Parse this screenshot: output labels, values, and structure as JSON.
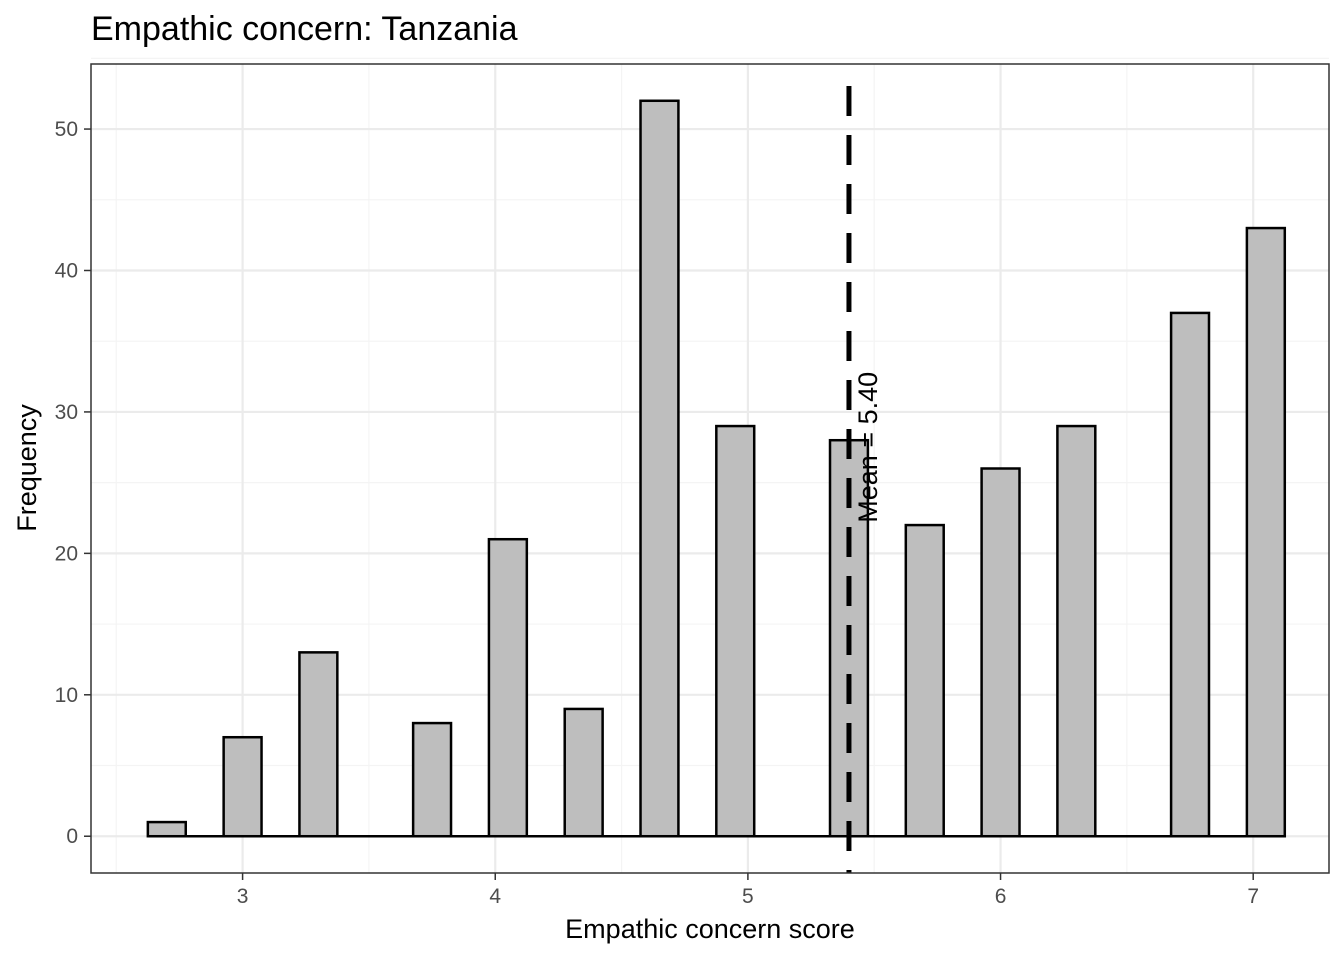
{
  "chart_data": {
    "type": "bar",
    "title": "Empathic concern: Tanzania",
    "xlabel": "Empathic concern score",
    "ylabel": "Frequency",
    "xlim": [
      2.4,
      7.3
    ],
    "ylim": [
      -2.6,
      54.6
    ],
    "x_ticks": [
      "3",
      "4",
      "5",
      "6",
      "7"
    ],
    "x_tick_values": [
      3,
      4,
      5,
      6,
      7
    ],
    "y_ticks": [
      "0",
      "10",
      "20",
      "30",
      "40",
      "50"
    ],
    "y_tick_values": [
      0,
      10,
      20,
      30,
      40,
      50
    ],
    "bin_width": 0.15,
    "bins": [
      {
        "x": 2.7,
        "count": 1
      },
      {
        "x": 3.0,
        "count": 7
      },
      {
        "x": 3.3,
        "count": 13
      },
      {
        "x": 3.75,
        "count": 8
      },
      {
        "x": 4.05,
        "count": 21
      },
      {
        "x": 4.35,
        "count": 9
      },
      {
        "x": 4.65,
        "count": 52
      },
      {
        "x": 4.95,
        "count": 29
      },
      {
        "x": 5.4,
        "count": 28
      },
      {
        "x": 5.7,
        "count": 22
      },
      {
        "x": 6.0,
        "count": 26
      },
      {
        "x": 6.3,
        "count": 29
      },
      {
        "x": 6.75,
        "count": 37
      },
      {
        "x": 7.05,
        "count": 43
      }
    ],
    "baseline_range": [
      2.625,
      7.125
    ],
    "mean": 5.4,
    "mean_label": "Mean = 5.40",
    "grid": true,
    "colors": {
      "bar_fill": "#bebebe",
      "bar_stroke": "#000000",
      "grid_major": "#ebebeb",
      "grid_minor": "#f4f4f4",
      "panel_border": "#333333",
      "mean_line": "#000000"
    }
  }
}
